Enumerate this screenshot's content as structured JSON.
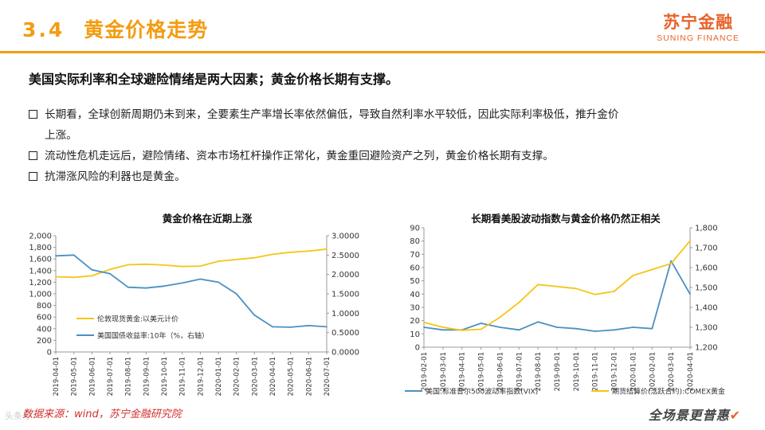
{
  "header": {
    "section_number": "3.4",
    "section_title": "黄金价格走势",
    "logo_main": "苏宁金融",
    "logo_sub": "SUNING FINANCE"
  },
  "headline": "美国实际利率和全球避险情绪是两大因素；黄金价格长期有支撑。",
  "bullets": [
    {
      "text": "长期看，全球创新周期仍未到来，全要素生产率增长率依然偏低，导致自然利率水平较低，因此实际利率极低，推升金价"
    },
    {
      "text": "上涨。",
      "continuation": true
    },
    {
      "text": "流动性危机走远后，避险情绪、资本市场杠杆操作正常化，黄金重回避险资产之列，黄金价格长期有支撑。"
    },
    {
      "text": "抗滞涨风险的利器也是黄金。"
    }
  ],
  "colors": {
    "accent": "#f39c12",
    "brand": "#e8632b",
    "gold_series": "#f5c518",
    "blue_series": "#4a90c2",
    "source_text": "#d32f2f"
  },
  "chart_data": [
    {
      "type": "line",
      "title": "黄金价格在近期上涨",
      "x": [
        "2019-04-01",
        "2019-05-01",
        "2019-06-01",
        "2019-07-01",
        "2019-08-01",
        "2019-09-01",
        "2019-10-01",
        "2019-11-01",
        "2019-12-01",
        "2020-01-01",
        "2020-02-01",
        "2020-03-01",
        "2020-04-01",
        "2020-05-01",
        "2020-06-01",
        "2020-07-01"
      ],
      "y_left_ticks": [
        "0",
        "200",
        "400",
        "600",
        "800",
        "1,000",
        "1,200",
        "1,400",
        "1,600",
        "1,800",
        "2,000"
      ],
      "y_right_ticks": [
        "0.0000",
        "0.5000",
        "1.0000",
        "1.5000",
        "2.0000",
        "2.5000",
        "3.0000"
      ],
      "ylim_left": [
        0,
        2000
      ],
      "ylim_right": [
        0,
        3
      ],
      "legend_position": "bottom-left",
      "series": [
        {
          "name": "伦敦现货黄金:以美元计价",
          "axis": "left",
          "color": "#f5c518",
          "values": [
            1295,
            1284,
            1310,
            1420,
            1500,
            1510,
            1495,
            1470,
            1478,
            1560,
            1590,
            1620,
            1680,
            1715,
            1735,
            1770
          ]
        },
        {
          "name": "美国国债收益率:10年（%，右轴）",
          "axis": "right",
          "color": "#4a90c2",
          "values": [
            2.48,
            2.5,
            2.12,
            2.02,
            1.67,
            1.65,
            1.7,
            1.78,
            1.88,
            1.8,
            1.5,
            0.95,
            0.65,
            0.64,
            0.68,
            0.65
          ]
        }
      ]
    },
    {
      "type": "line",
      "title": "长期看美股波动指数与黄金价格仍然正相关",
      "x": [
        "2019-02-01",
        "2019-03-01",
        "2019-04-01",
        "2019-05-01",
        "2019-06-01",
        "2019-07-01",
        "2019-08-01",
        "2019-09-01",
        "2019-10-01",
        "2019-11-01",
        "2019-12-01",
        "2020-01-01",
        "2020-02-01",
        "2020-03-01",
        "2020-04-01"
      ],
      "y_left_ticks": [
        "0",
        "10",
        "20",
        "30",
        "40",
        "50",
        "60",
        "70",
        "80",
        "90"
      ],
      "y_right_ticks": [
        "1,200",
        "1,300",
        "1,400",
        "1,500",
        "1,600",
        "1,700",
        "1,800"
      ],
      "ylim_left": [
        0,
        90
      ],
      "ylim_right": [
        1200,
        1800
      ],
      "legend_position": "bottom",
      "series": [
        {
          "name": "美国:标准普尔500波动率指数(VIX)",
          "axis": "left",
          "color": "#4a90c2",
          "values": [
            15,
            13,
            13,
            18,
            15,
            13,
            19,
            15,
            14,
            12,
            13,
            15,
            14,
            65,
            40
          ]
        },
        {
          "name": "期货结算价(活跃合约):COMEX黄金",
          "axis": "right",
          "color": "#f5c518",
          "values": [
            1325,
            1300,
            1285,
            1290,
            1350,
            1425,
            1515,
            1505,
            1495,
            1465,
            1480,
            1560,
            1590,
            1620,
            1735
          ]
        }
      ]
    }
  ],
  "source": "数据来源：wind，苏宁金融研究院",
  "watermark": "头条号",
  "footer_slogan": "全场景更普惠"
}
